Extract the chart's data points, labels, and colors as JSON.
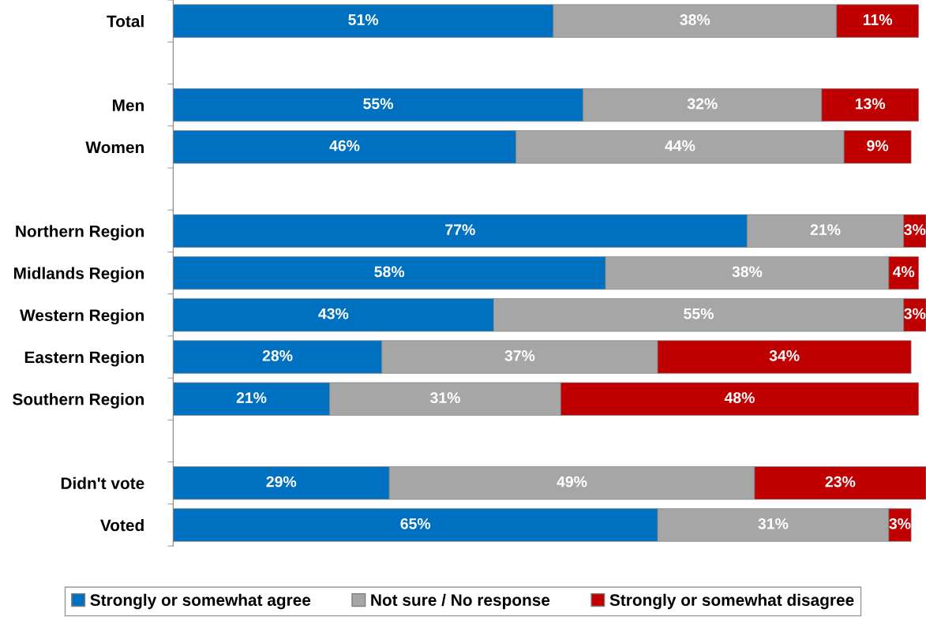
{
  "chart_data": {
    "type": "bar",
    "orientation": "horizontal",
    "stacked": true,
    "grid": false,
    "legend": "bottom",
    "tick_labels": "y",
    "categories": [
      "Total",
      null,
      "Men",
      "Women",
      null,
      "Northern Region",
      "Midlands Region",
      "Western Region",
      "Eastern Region",
      "Southern Region",
      null,
      "Didn't vote",
      "Voted"
    ],
    "series": [
      {
        "name": "Strongly or somewhat agree",
        "color": "#0070c0",
        "values": [
          51,
          null,
          55,
          46,
          null,
          77,
          58,
          43,
          28,
          21,
          null,
          29,
          65
        ],
        "value_labels": [
          "51%",
          null,
          "55%",
          "46%",
          null,
          "77%",
          "58%",
          "43%",
          "28%",
          "21%",
          null,
          "29%",
          "65%"
        ]
      },
      {
        "name": "Not sure / No response",
        "color": "#a6a6a6",
        "values": [
          38,
          null,
          32,
          44,
          null,
          21,
          38,
          55,
          37,
          31,
          null,
          49,
          31
        ],
        "value_labels": [
          "38%",
          null,
          "32%",
          "44%",
          null,
          "21%",
          "38%",
          "55%",
          "37%",
          "31%",
          null,
          "49%",
          "31%"
        ]
      },
      {
        "name": "Strongly or somewhat disagree",
        "color": "#c00000",
        "values": [
          11,
          null,
          13,
          9,
          null,
          3,
          4,
          3,
          34,
          48,
          null,
          23,
          3
        ],
        "value_labels": [
          "11%",
          null,
          "13%",
          "9%",
          null,
          "3%",
          "4%",
          "3%",
          "34%",
          "48%",
          null,
          "23%",
          "3%"
        ]
      }
    ]
  }
}
